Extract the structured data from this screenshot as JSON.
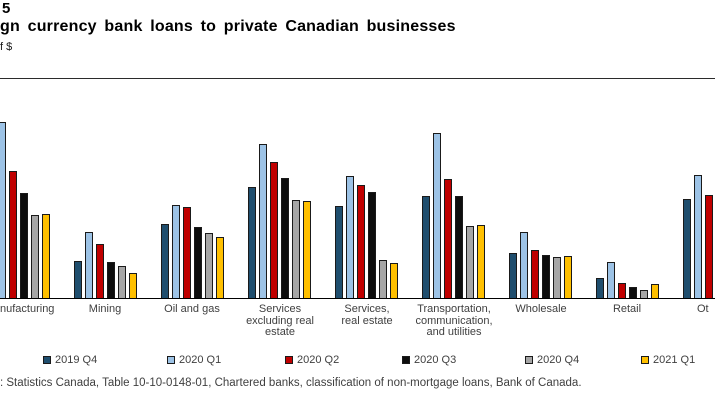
{
  "header": {
    "chart_number": "5",
    "title": "gn currency bank loans to private Canadian businesses",
    "units": "f $"
  },
  "chart_data": {
    "type": "bar",
    "title": "gn currency bank loans to private Canadian businesses",
    "ylabel": "f $",
    "xlabel": "",
    "grid": false,
    "legend_position": "bottom",
    "value_unit_note": "y-axis cropped out of frame; values are bar heights in screen pixels (plot height 219 px); null = bar cropped outside the visible frame",
    "ylim": [
      0,
      219
    ],
    "categories": [
      "Manufacturing",
      "Mining",
      "Oil and gas",
      "Services excluding real estate",
      "Services, real estate",
      "Transportation, communication, and utilities",
      "Wholesale",
      "Retail",
      "Other"
    ],
    "series": [
      {
        "name": "2019 Q4",
        "color": "#1F4E6E",
        "values": [
          null,
          37,
          74,
          111,
          92,
          102,
          45,
          20,
          99
        ]
      },
      {
        "name": "2020 Q1",
        "color": "#9DC3E6",
        "values": [
          176,
          66,
          93,
          154,
          122,
          165,
          66,
          36,
          123
        ]
      },
      {
        "name": "2020 Q2",
        "color": "#C00000",
        "values": [
          127,
          54,
          91,
          136,
          113,
          119,
          48,
          15,
          103
        ]
      },
      {
        "name": "2020 Q3",
        "color": "#0D0D0D",
        "values": [
          105,
          36,
          71,
          120,
          106,
          102,
          43,
          11,
          null
        ]
      },
      {
        "name": "2020 Q4",
        "color": "#A6A6A6",
        "values": [
          83,
          32,
          65,
          98,
          38,
          72,
          41,
          8,
          null
        ]
      },
      {
        "name": "2021 Q1",
        "color": "#FFC000",
        "values": [
          84,
          25,
          61,
          97,
          35,
          73,
          42,
          14,
          null
        ]
      }
    ]
  },
  "xaxis": {
    "display_labels": [
      {
        "lines": [
          "nufacturing"
        ],
        "align": "left"
      },
      {
        "lines": [
          "Mining"
        ],
        "align": "center"
      },
      {
        "lines": [
          "Oil and gas"
        ],
        "align": "center"
      },
      {
        "lines": [
          "Services",
          "excluding real",
          "estate"
        ],
        "align": "center"
      },
      {
        "lines": [
          "Services,",
          "real estate"
        ],
        "align": "center"
      },
      {
        "lines": [
          "Transportation,",
          "communication,",
          "and utilities"
        ],
        "align": "center"
      },
      {
        "lines": [
          "Wholesale"
        ],
        "align": "center"
      },
      {
        "lines": [
          "Retail"
        ],
        "align": "center"
      },
      {
        "lines": [
          "Ot"
        ],
        "align": "left"
      }
    ]
  },
  "footer": {
    "source": ": Statistics Canada, Table 10-10-0148-01, Chartered banks, classification of non-mortgage loans, Bank of Canada."
  }
}
